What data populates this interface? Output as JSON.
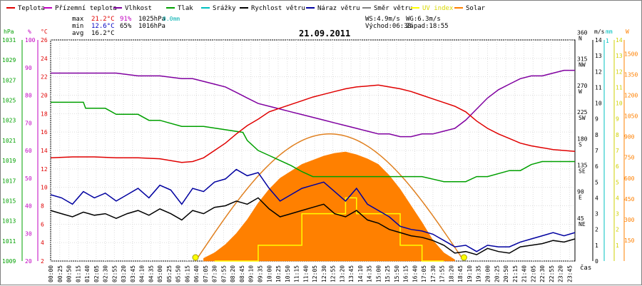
{
  "chart_data": {
    "type": "line",
    "title": "21.09.2011",
    "legend": [
      {
        "name": "Teplota",
        "color": "#e00000"
      },
      {
        "name": "Přízemní teplota",
        "color": "#c000c0"
      },
      {
        "name": "Vlhkost",
        "color": "#8000a0"
      },
      {
        "name": "Tlak",
        "color": "#00a000"
      },
      {
        "name": "Srážky",
        "color": "#00c0c0"
      },
      {
        "name": "Rychlost větru",
        "color": "#000000"
      },
      {
        "name": "Náraz větru",
        "color": "#0000a0"
      },
      {
        "name": "Směr větru",
        "color": "#808080"
      },
      {
        "name": "UV index",
        "color": "#ffff00"
      },
      {
        "name": "Solar",
        "color": "#ff8000"
      }
    ],
    "stats": {
      "max_label": "max",
      "max_temp": "21.2°C",
      "max_hum": "91%",
      "max_press": "1025hPa",
      "rain": "0.0mm",
      "min_label": "min",
      "min_temp": "12.6°C",
      "min_hum": "65%",
      "min_press": "1016hPa",
      "avg_label": "avg",
      "avg_temp": "16.2°C",
      "ws": "WS:4.9m/s",
      "wg": "WG:6.3m/s",
      "sunrise": "Východ:06:38",
      "sunset": "Západ:18:55"
    },
    "axes": {
      "pressure": {
        "unit": "hPa",
        "ticks": [
          "1009",
          "1011",
          "1013",
          "1015",
          "1017",
          "1019",
          "1021",
          "1023",
          "1025",
          "1027",
          "1029",
          "1031"
        ],
        "color": "#00a000"
      },
      "humidity": {
        "unit": "%",
        "ticks": [
          "20",
          "30",
          "40",
          "50",
          "60",
          "70",
          "80",
          "90",
          "100"
        ],
        "color": "#c000c0"
      },
      "temperature": {
        "unit": "°C",
        "ticks": [
          "2",
          "4",
          "6",
          "8",
          "10",
          "12",
          "14",
          "16",
          "18",
          "20",
          "22",
          "24",
          "26"
        ],
        "color": "#e00000"
      },
      "wind_dir": {
        "ticks": [
          "45\nNE",
          "90\nE",
          "135\nSE",
          "180\nS",
          "225\nSW",
          "270\nW",
          "315\nNW",
          "360\nN"
        ]
      },
      "wind_speed": {
        "unit": "m/s",
        "ticks": [
          "0",
          "1",
          "2",
          "3",
          "4",
          "5",
          "6",
          "7",
          "8",
          "9",
          "10",
          "11",
          "12",
          "13",
          "14"
        ]
      },
      "rain": {
        "unit": "mm",
        "ticks": [
          "1"
        ]
      },
      "uv": {
        "ticks": [
          "1",
          "2",
          "3",
          "4",
          "5",
          "6",
          "7",
          "8",
          "9",
          "10",
          "11",
          "12",
          "13",
          "14"
        ],
        "color": "#d0d000"
      },
      "solar": {
        "unit": "W",
        "ticks": [
          "150",
          "300",
          "450",
          "600",
          "750",
          "900",
          "1050",
          "1200",
          "1350",
          "1500"
        ],
        "color": "#ff8000"
      },
      "x_unit": "čas",
      "x_ticks": [
        "00:00",
        "00:25",
        "00:50",
        "01:15",
        "01:40",
        "02:05",
        "02:30",
        "02:55",
        "03:20",
        "03:45",
        "04:10",
        "04:35",
        "05:00",
        "05:25",
        "05:50",
        "06:15",
        "06:40",
        "07:05",
        "07:30",
        "07:55",
        "08:20",
        "08:45",
        "09:10",
        "09:35",
        "10:00",
        "10:25",
        "10:50",
        "11:15",
        "11:40",
        "12:05",
        "12:30",
        "12:55",
        "13:20",
        "13:45",
        "14:10",
        "14:35",
        "15:00",
        "15:25",
        "15:50",
        "16:15",
        "16:40",
        "17:05",
        "17:30",
        "17:55",
        "18:20",
        "18:45",
        "19:10",
        "19:35",
        "20:00",
        "20:25",
        "20:50",
        "21:15",
        "21:40",
        "22:05",
        "22:30",
        "22:55",
        "23:20",
        "23:45"
      ]
    },
    "series": [
      {
        "name": "Teplota",
        "unit": "°C",
        "x_hours": [
          0,
          1,
          2,
          3,
          4,
          5,
          6,
          6.5,
          7,
          7.5,
          8,
          8.5,
          9,
          9.5,
          10,
          10.5,
          11,
          11.5,
          12,
          12.5,
          13,
          13.5,
          14,
          14.5,
          15,
          15.5,
          16,
          16.5,
          17,
          17.5,
          18,
          18.5,
          19,
          19.5,
          20,
          20.5,
          21,
          21.5,
          22,
          22.5,
          23,
          23.5,
          24
        ],
        "values": [
          13.2,
          13.3,
          13.3,
          13.2,
          13.2,
          13.1,
          12.7,
          12.8,
          13.2,
          14.0,
          14.8,
          15.8,
          16.7,
          17.4,
          18.2,
          18.6,
          19.0,
          19.4,
          19.8,
          20.1,
          20.4,
          20.7,
          20.9,
          21.0,
          21.1,
          20.9,
          20.7,
          20.4,
          20.0,
          19.6,
          19.2,
          18.8,
          18.2,
          17.2,
          16.4,
          15.8,
          15.3,
          14.8,
          14.5,
          14.3,
          14.1,
          14.0,
          13.9
        ]
      },
      {
        "name": "Vlhkost",
        "unit": "%",
        "x_hours": [
          0,
          1,
          2,
          3,
          4,
          5,
          6,
          6.5,
          7,
          7.5,
          8,
          8.5,
          9,
          9.5,
          10,
          10.5,
          11,
          11.5,
          12,
          12.5,
          13,
          13.5,
          14,
          14.5,
          15,
          15.5,
          16,
          16.5,
          17,
          17.5,
          18,
          18.5,
          19,
          19.5,
          20,
          20.5,
          21,
          21.5,
          22,
          22.5,
          23,
          23.5,
          24
        ],
        "values": [
          88,
          88,
          88,
          88,
          87,
          87,
          86,
          86,
          85,
          84,
          83,
          81,
          79,
          77,
          76,
          75,
          74,
          73,
          72,
          71,
          70,
          69,
          68,
          67,
          66,
          66,
          65,
          65,
          66,
          66,
          67,
          68,
          71,
          75,
          79,
          82,
          84,
          86,
          87,
          87,
          88,
          89,
          89
        ]
      },
      {
        "name": "Tlak",
        "unit": "hPa",
        "x_hours": [
          0,
          1.5,
          1.6,
          2.5,
          3,
          4,
          4.5,
          5,
          6,
          6.5,
          7,
          8.8,
          9,
          9.5,
          10,
          10.5,
          11,
          11.5,
          12,
          13,
          14,
          15,
          16,
          16.5,
          17,
          18,
          19,
          19.5,
          20,
          21,
          21.5,
          22,
          22.5,
          23,
          24
        ],
        "values": [
          1024.8,
          1024.8,
          1024.2,
          1024.2,
          1023.6,
          1023.6,
          1023.0,
          1023.0,
          1022.4,
          1022.4,
          1022.4,
          1021.8,
          1021.0,
          1020.0,
          1019.5,
          1019.0,
          1018.5,
          1017.9,
          1017.4,
          1017.4,
          1017.4,
          1017.4,
          1017.4,
          1017.4,
          1017.4,
          1016.9,
          1016.9,
          1017.4,
          1017.4,
          1018.0,
          1018.0,
          1018.6,
          1018.9,
          1018.9,
          1018.9
        ]
      },
      {
        "name": "Rychlost větru",
        "unit": "m/s",
        "x_hours": [
          0,
          0.5,
          1,
          1.5,
          2,
          2.5,
          3,
          3.5,
          4,
          4.5,
          5,
          5.5,
          6,
          6.5,
          7,
          7.5,
          8,
          8.5,
          9,
          9.5,
          10,
          10.5,
          11,
          11.5,
          12,
          12.5,
          13,
          13.5,
          14,
          14.5,
          15,
          15.5,
          16,
          16.5,
          17,
          17.5,
          18,
          18.5,
          19,
          19.5,
          20,
          20.5,
          21,
          21.5,
          22,
          22.5,
          23,
          23.5,
          24
        ],
        "values": [
          3.2,
          3.0,
          2.8,
          3.1,
          2.9,
          3.0,
          2.7,
          3.0,
          3.2,
          2.9,
          3.3,
          3.0,
          2.6,
          3.2,
          3.0,
          3.4,
          3.5,
          3.8,
          3.6,
          4.0,
          3.3,
          2.8,
          3.0,
          3.2,
          3.4,
          3.6,
          3.0,
          2.8,
          3.2,
          2.6,
          2.4,
          2.0,
          1.8,
          1.6,
          1.5,
          1.3,
          1.0,
          0.5,
          0.6,
          0.4,
          0.8,
          0.6,
          0.5,
          0.9,
          1.0,
          1.1,
          1.3,
          1.2,
          1.4
        ]
      },
      {
        "name": "Náraz větru",
        "unit": "m/s",
        "x_hours": [
          0,
          0.5,
          1,
          1.5,
          2,
          2.5,
          3,
          3.5,
          4,
          4.5,
          5,
          5.5,
          6,
          6.5,
          7,
          7.5,
          8,
          8.5,
          9,
          9.5,
          10,
          10.5,
          11,
          11.5,
          12,
          12.5,
          13,
          13.5,
          14,
          14.5,
          15,
          15.5,
          16,
          16.5,
          17,
          17.5,
          18,
          18.5,
          19,
          19.5,
          20,
          20.5,
          21,
          21.5,
          22,
          22.5,
          23,
          23.5,
          24
        ],
        "values": [
          4.2,
          4.0,
          3.6,
          4.4,
          4.0,
          4.3,
          3.8,
          4.2,
          4.6,
          4.0,
          4.8,
          4.5,
          3.6,
          4.6,
          4.4,
          5.0,
          5.2,
          5.8,
          5.4,
          5.6,
          4.6,
          3.8,
          4.2,
          4.6,
          4.8,
          5.0,
          4.4,
          3.8,
          4.6,
          3.6,
          3.2,
          2.8,
          2.2,
          2.0,
          1.9,
          1.7,
          1.3,
          0.9,
          1.0,
          0.6,
          1.0,
          0.9,
          0.9,
          1.2,
          1.4,
          1.6,
          1.8,
          1.6,
          1.8
        ]
      },
      {
        "name": "Solar",
        "unit": "W",
        "x_hours": [
          7,
          7.5,
          8,
          8.5,
          9,
          9.5,
          10,
          10.5,
          11,
          11.5,
          12,
          12.5,
          13,
          13.5,
          14,
          14.5,
          15,
          15.5,
          16,
          16.5,
          17,
          17.5,
          18,
          18.5
        ],
        "values": [
          20,
          60,
          120,
          200,
          300,
          420,
          520,
          600,
          650,
          700,
          730,
          760,
          780,
          790,
          770,
          740,
          700,
          620,
          520,
          400,
          280,
          150,
          60,
          10
        ]
      },
      {
        "name": "UV index",
        "x_hours": [
          7.5,
          9.5,
          9.5,
          11.5,
          11.5,
          13.5,
          13.5,
          14.0,
          14.0,
          16.0,
          16.0,
          17.0,
          17.0,
          18.0
        ],
        "values": [
          0,
          0,
          1,
          1,
          3,
          3,
          4,
          4,
          3,
          3,
          1,
          1,
          0,
          0
        ]
      }
    ]
  }
}
